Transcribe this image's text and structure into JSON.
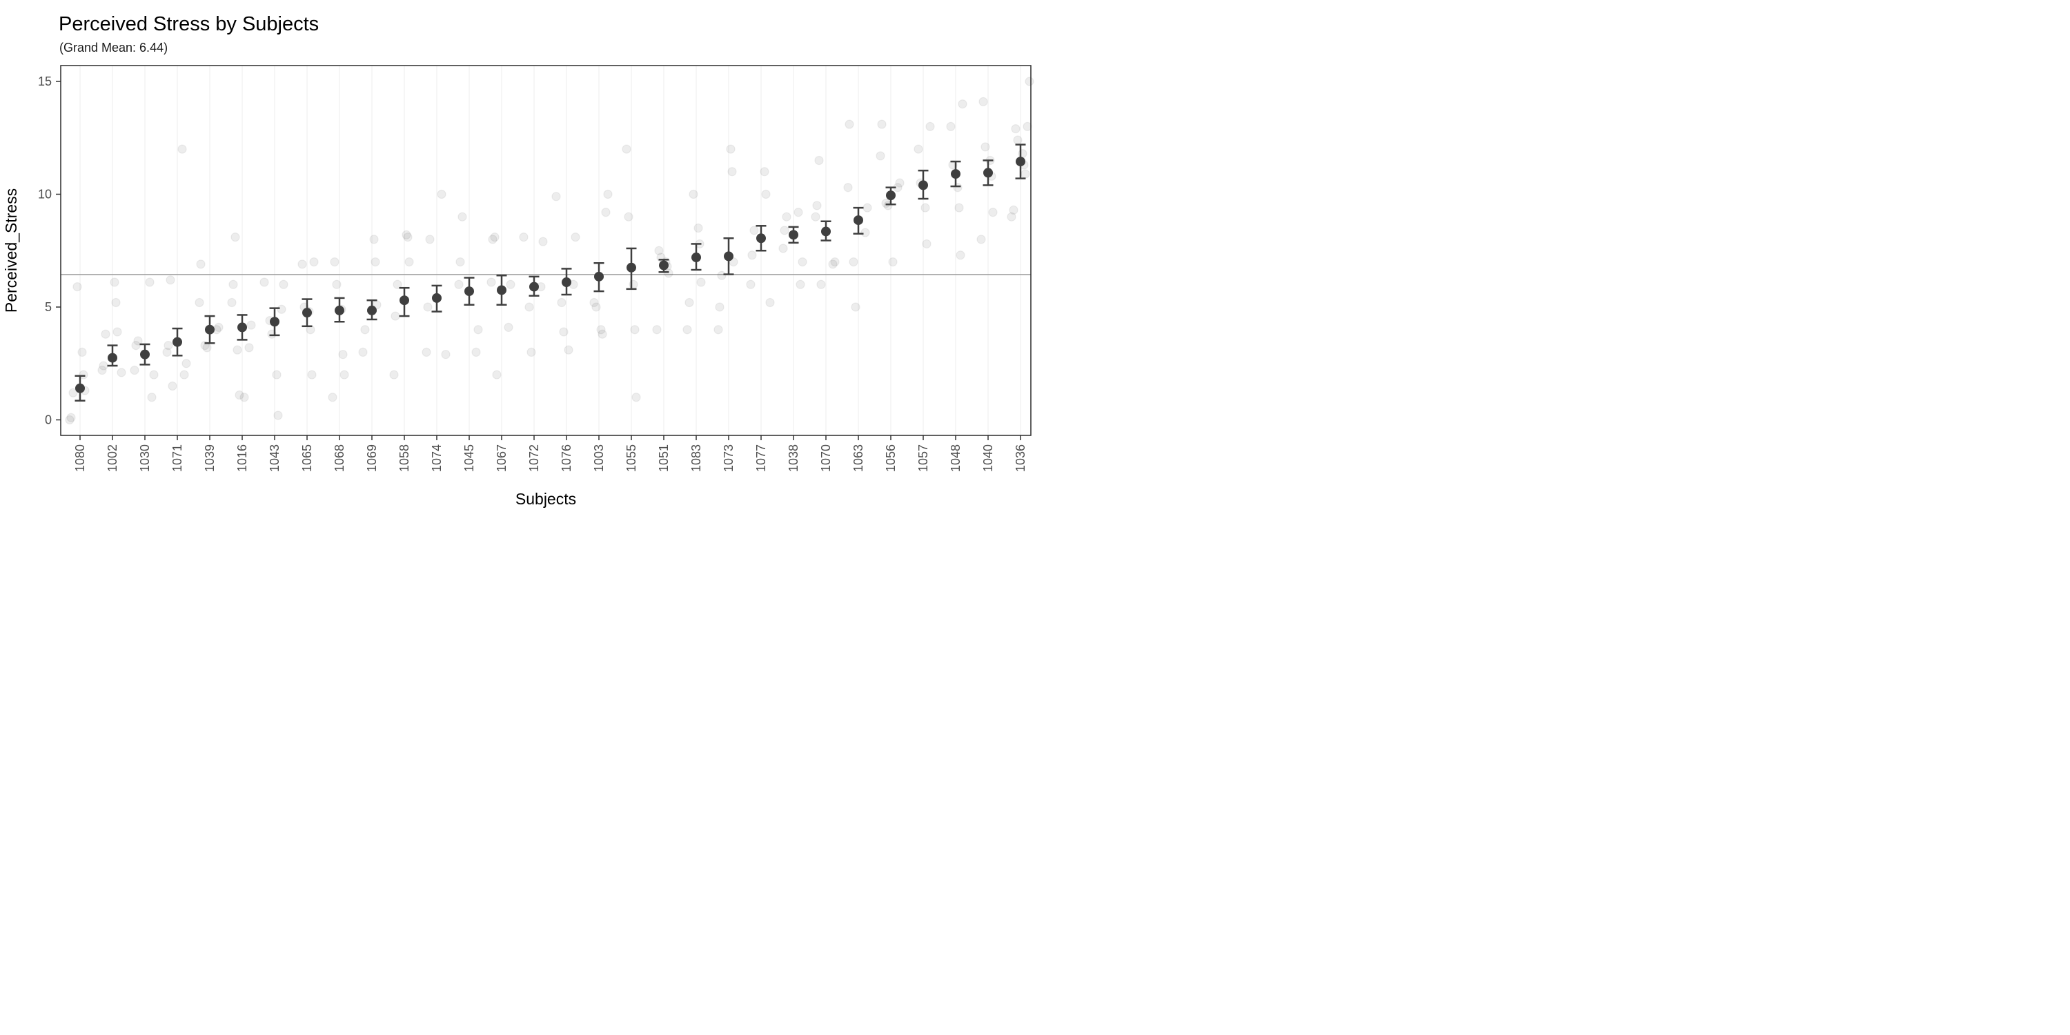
{
  "header": {
    "title": "Perceived Stress by Subjects",
    "subtitle": "(Grand Mean: 6.44)"
  },
  "chart_data": {
    "type": "scatter",
    "title": "Perceived Stress by Subjects",
    "subtitle": "(Grand Mean: 6.44)",
    "xlabel": "Subjects",
    "ylabel": "Perceived_Stress",
    "y_ticks": [
      0,
      5,
      10,
      15
    ],
    "ylim": [
      -0.75,
      15.75
    ],
    "grand_mean": 6.44,
    "grid": "vertical-only",
    "legend_position": "none",
    "point_style": "mean dot with error bar whiskers, light jittered raw observations behind",
    "categories": [
      "1080",
      "1002",
      "1030",
      "1071",
      "1039",
      "1016",
      "1043",
      "1065",
      "1068",
      "1069",
      "1058",
      "1074",
      "1045",
      "1067",
      "1072",
      "1076",
      "1003",
      "1055",
      "1051",
      "1083",
      "1073",
      "1077",
      "1038",
      "1070",
      "1063",
      "1056",
      "1057",
      "1048",
      "1040",
      "1036"
    ],
    "subjects": [
      {
        "id": "1080",
        "mean": 1.4,
        "ci_low": 0.85,
        "ci_high": 1.95,
        "raw_points": [
          0,
          0.1,
          1.2,
          1.3,
          2,
          3,
          5.9
        ]
      },
      {
        "id": "1002",
        "mean": 2.75,
        "ci_low": 2.4,
        "ci_high": 3.3,
        "raw_points": [
          2.1,
          2.2,
          2.4,
          3.8,
          3.9,
          5.2,
          6.1
        ]
      },
      {
        "id": "1030",
        "mean": 2.9,
        "ci_low": 2.45,
        "ci_high": 3.35,
        "raw_points": [
          1,
          2,
          2.2,
          3.3,
          3.5,
          6.1
        ]
      },
      {
        "id": "1071",
        "mean": 3.45,
        "ci_low": 2.85,
        "ci_high": 4.05,
        "raw_points": [
          1.5,
          2,
          2.5,
          3,
          3.3,
          6.2,
          12
        ]
      },
      {
        "id": "1039",
        "mean": 4.0,
        "ci_low": 3.4,
        "ci_high": 4.6,
        "raw_points": [
          3.2,
          3.3,
          4,
          4.1,
          5.2,
          6.9
        ]
      },
      {
        "id": "1016",
        "mean": 4.1,
        "ci_low": 3.55,
        "ci_high": 4.65,
        "raw_points": [
          1,
          1.1,
          3.1,
          3.2,
          4.2,
          5.2,
          6,
          8.1
        ]
      },
      {
        "id": "1043",
        "mean": 4.35,
        "ci_low": 3.75,
        "ci_high": 4.95,
        "raw_points": [
          0.2,
          2,
          3.8,
          4.4,
          4.9,
          6,
          6.1
        ]
      },
      {
        "id": "1065",
        "mean": 4.75,
        "ci_low": 4.15,
        "ci_high": 5.35,
        "raw_points": [
          2,
          4,
          4.8,
          5,
          6.9,
          7
        ]
      },
      {
        "id": "1068",
        "mean": 4.85,
        "ci_low": 4.35,
        "ci_high": 5.4,
        "raw_points": [
          1,
          2,
          2.9,
          4.9,
          6,
          7
        ]
      },
      {
        "id": "1069",
        "mean": 4.85,
        "ci_low": 4.45,
        "ci_high": 5.3,
        "raw_points": [
          3,
          4,
          5.1,
          7,
          8
        ]
      },
      {
        "id": "1058",
        "mean": 5.3,
        "ci_low": 4.6,
        "ci_high": 5.85,
        "raw_points": [
          2,
          4.6,
          6,
          7,
          8.1,
          8.2
        ]
      },
      {
        "id": "1074",
        "mean": 5.4,
        "ci_low": 4.8,
        "ci_high": 5.95,
        "raw_points": [
          2.9,
          3,
          5,
          8,
          10
        ]
      },
      {
        "id": "1045",
        "mean": 5.7,
        "ci_low": 5.1,
        "ci_high": 6.3,
        "raw_points": [
          3,
          4,
          6,
          7,
          9
        ]
      },
      {
        "id": "1067",
        "mean": 5.75,
        "ci_low": 5.1,
        "ci_high": 6.4,
        "raw_points": [
          2,
          4.1,
          6,
          6.1,
          8,
          8.1
        ]
      },
      {
        "id": "1072",
        "mean": 5.9,
        "ci_low": 5.5,
        "ci_high": 6.35,
        "raw_points": [
          3,
          5,
          5.9,
          7.9,
          8.1
        ]
      },
      {
        "id": "1076",
        "mean": 6.1,
        "ci_low": 5.55,
        "ci_high": 6.7,
        "raw_points": [
          3.1,
          3.9,
          5.2,
          6,
          8.1,
          9.9
        ]
      },
      {
        "id": "1003",
        "mean": 6.35,
        "ci_low": 5.7,
        "ci_high": 6.95,
        "raw_points": [
          3.8,
          4,
          5,
          5.2,
          9.2,
          10
        ]
      },
      {
        "id": "1055",
        "mean": 6.75,
        "ci_low": 5.8,
        "ci_high": 7.6,
        "raw_points": [
          1,
          4,
          6,
          9,
          12
        ]
      },
      {
        "id": "1051",
        "mean": 6.85,
        "ci_low": 6.55,
        "ci_high": 7.1,
        "raw_points": [
          4,
          6.5,
          6.8,
          7,
          7.2,
          7.5
        ]
      },
      {
        "id": "1083",
        "mean": 7.2,
        "ci_low": 6.65,
        "ci_high": 7.8,
        "raw_points": [
          4,
          5.2,
          6.1,
          7.8,
          8.5,
          10
        ]
      },
      {
        "id": "1073",
        "mean": 7.25,
        "ci_low": 6.45,
        "ci_high": 8.05,
        "raw_points": [
          4,
          5,
          6.4,
          7,
          11,
          12
        ]
      },
      {
        "id": "1077",
        "mean": 8.05,
        "ci_low": 7.5,
        "ci_high": 8.6,
        "raw_points": [
          5.2,
          6,
          7.3,
          8.4,
          10,
          11
        ]
      },
      {
        "id": "1038",
        "mean": 8.2,
        "ci_low": 7.85,
        "ci_high": 8.55,
        "raw_points": [
          6,
          7,
          7.6,
          8.4,
          9,
          9.2
        ]
      },
      {
        "id": "1070",
        "mean": 8.35,
        "ci_low": 7.95,
        "ci_high": 8.8,
        "raw_points": [
          6,
          6.9,
          7,
          9,
          9.5,
          11.5
        ]
      },
      {
        "id": "1063",
        "mean": 8.85,
        "ci_low": 8.25,
        "ci_high": 9.4,
        "raw_points": [
          5,
          7,
          8.3,
          9.4,
          10.3,
          13.1
        ]
      },
      {
        "id": "1056",
        "mean": 9.95,
        "ci_low": 9.55,
        "ci_high": 10.3,
        "raw_points": [
          7,
          9.5,
          9.6,
          10.3,
          10.5,
          11.7,
          13.1
        ]
      },
      {
        "id": "1057",
        "mean": 10.4,
        "ci_low": 9.8,
        "ci_high": 11.05,
        "raw_points": [
          7.8,
          9.4,
          10.5,
          12,
          13
        ]
      },
      {
        "id": "1048",
        "mean": 10.9,
        "ci_low": 10.35,
        "ci_high": 11.45,
        "raw_points": [
          7.3,
          9.4,
          10.3,
          11.3,
          13,
          14
        ]
      },
      {
        "id": "1040",
        "mean": 10.95,
        "ci_low": 10.4,
        "ci_high": 11.5,
        "raw_points": [
          8,
          9.2,
          10.8,
          11.5,
          12.1,
          14.1
        ]
      },
      {
        "id": "1036",
        "mean": 11.45,
        "ci_low": 10.7,
        "ci_high": 12.2,
        "raw_points": [
          9,
          9.3,
          10.9,
          11.3,
          11.8,
          12.4,
          12.9,
          13,
          15
        ]
      }
    ]
  },
  "style": {
    "mean_dot_color": "#3f3f3f",
    "error_bar_color": "#3f3f3f",
    "jitter_fill": "#000000",
    "jitter_fill_opacity": 0.07,
    "jitter_stroke_opacity": 0.06,
    "grand_mean_line_color": "#9e9e9e",
    "gridline_color": "#ececec",
    "panel_border_color": "#2b2b2b",
    "tick_color": "#333333",
    "tick_label_color": "#4d4d4d",
    "background": "#ffffff"
  }
}
